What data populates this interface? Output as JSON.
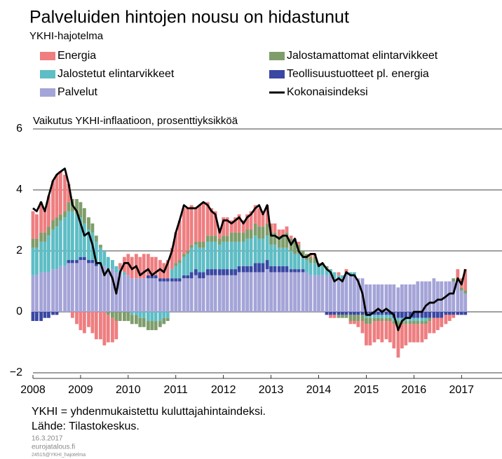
{
  "chart_data": {
    "type": "bar",
    "title": "Palveluiden hintojen nousu on hidastunut",
    "subtitle": "YKHI-hajotelma",
    "y_label": "Vaikutus YKHI-inflaatioon, prosenttiyksikköä",
    "notes": [
      "YKHI = yhdenmukaistettu kuluttajahintaindeksi.",
      "Lähde: Tilastokeskus."
    ],
    "small_notes": [
      "16.3.2017",
      "eurojatalous.fi",
      "24515@YKHI_hajotelma"
    ],
    "stacked": true,
    "grid": true,
    "xlim": [
      2008,
      2017.85
    ],
    "xticks": [
      2008,
      2009,
      2010,
      2011,
      2012,
      2013,
      2014,
      2015,
      2016,
      2017
    ],
    "ylim": [
      -2,
      6
    ],
    "yticks": [
      {
        "value": -2,
        "label": "−2"
      },
      0,
      2,
      4,
      6
    ],
    "x": [
      2008.0,
      2008.08,
      2008.17,
      2008.25,
      2008.33,
      2008.42,
      2008.5,
      2008.58,
      2008.67,
      2008.75,
      2008.83,
      2008.92,
      2009.0,
      2009.08,
      2009.17,
      2009.25,
      2009.33,
      2009.42,
      2009.5,
      2009.58,
      2009.67,
      2009.75,
      2009.83,
      2009.92,
      2010.0,
      2010.08,
      2010.17,
      2010.25,
      2010.33,
      2010.42,
      2010.5,
      2010.58,
      2010.67,
      2010.75,
      2010.83,
      2010.92,
      2011.0,
      2011.08,
      2011.17,
      2011.25,
      2011.33,
      2011.42,
      2011.5,
      2011.58,
      2011.67,
      2011.75,
      2011.83,
      2011.92,
      2012.0,
      2012.08,
      2012.17,
      2012.25,
      2012.33,
      2012.42,
      2012.5,
      2012.58,
      2012.67,
      2012.75,
      2012.83,
      2012.92,
      2013.0,
      2013.08,
      2013.17,
      2013.25,
      2013.33,
      2013.42,
      2013.5,
      2013.58,
      2013.67,
      2013.75,
      2013.83,
      2013.92,
      2014.0,
      2014.08,
      2014.17,
      2014.25,
      2014.33,
      2014.42,
      2014.5,
      2014.58,
      2014.67,
      2014.75,
      2014.83,
      2014.92,
      2015.0,
      2015.08,
      2015.17,
      2015.25,
      2015.33,
      2015.42,
      2015.5,
      2015.58,
      2015.67,
      2015.75,
      2015.83,
      2015.92,
      2016.0,
      2016.08,
      2016.17,
      2016.25,
      2016.33,
      2016.42,
      2016.5,
      2016.58,
      2016.67,
      2016.75,
      2016.83,
      2016.92,
      2017.0,
      2017.08
    ],
    "series": [
      {
        "name": "Energia",
        "type": "bar",
        "color": "#ee7e80",
        "values": [
          0.9,
          0.8,
          1.0,
          0.8,
          1.0,
          1.3,
          1.4,
          1.4,
          1.2,
          0.6,
          -0.2,
          -0.4,
          -0.6,
          -0.7,
          -0.5,
          -0.7,
          -0.9,
          -0.9,
          -1.1,
          -0.9,
          -0.8,
          -0.6,
          0.2,
          0.5,
          0.7,
          0.7,
          0.8,
          0.7,
          0.8,
          0.7,
          0.6,
          0.6,
          0.6,
          0.5,
          0.6,
          0.7,
          1.0,
          1.3,
          1.5,
          1.4,
          1.3,
          1.1,
          1.2,
          1.3,
          1.1,
          0.9,
          0.8,
          0.3,
          0.6,
          0.6,
          0.4,
          0.5,
          0.6,
          0.4,
          0.5,
          0.6,
          0.6,
          0.6,
          0.5,
          0.6,
          0.3,
          0.3,
          0.2,
          0.2,
          0.2,
          0.1,
          0.1,
          0.1,
          0.0,
          0.0,
          0.1,
          0.1,
          0.0,
          0.0,
          0.0,
          -0.1,
          -0.1,
          0.1,
          0.0,
          0.1,
          -0.1,
          -0.1,
          -0.2,
          -0.4,
          -0.7,
          -0.7,
          -0.7,
          -0.6,
          -0.7,
          -0.6,
          -0.7,
          -0.8,
          -1.0,
          -0.8,
          -0.7,
          -0.6,
          -0.6,
          -0.6,
          -0.6,
          -0.5,
          -0.4,
          -0.5,
          -0.4,
          -0.3,
          -0.3,
          -0.2,
          -0.1,
          0.3,
          0.3,
          0.7
        ]
      },
      {
        "name": "Jalostamattomat elintarvikkeet",
        "type": "bar",
        "color": "#7f9d6b",
        "values": [
          0.3,
          0.3,
          0.3,
          0.3,
          0.3,
          0.3,
          0.3,
          0.2,
          0.2,
          0.3,
          0.4,
          0.5,
          0.5,
          0.5,
          0.4,
          0.3,
          0.2,
          0.1,
          0.0,
          -0.1,
          -0.2,
          -0.3,
          -0.3,
          -0.3,
          -0.3,
          -0.3,
          -0.3,
          -0.3,
          -0.3,
          -0.3,
          -0.3,
          -0.3,
          -0.2,
          -0.2,
          -0.1,
          0.0,
          0.1,
          0.1,
          0.1,
          0.1,
          0.1,
          0.1,
          0.2,
          0.2,
          0.2,
          0.2,
          0.2,
          0.2,
          0.2,
          0.2,
          0.3,
          0.3,
          0.3,
          0.3,
          0.3,
          0.3,
          0.4,
          0.4,
          0.4,
          0.4,
          0.4,
          0.4,
          0.4,
          0.4,
          0.5,
          0.4,
          0.4,
          0.3,
          0.2,
          0.2,
          0.2,
          0.2,
          0.1,
          0.1,
          0.1,
          0.0,
          0.0,
          -0.1,
          -0.1,
          -0.1,
          -0.2,
          -0.2,
          -0.2,
          -0.2,
          -0.2,
          -0.2,
          -0.1,
          -0.1,
          -0.1,
          -0.1,
          -0.1,
          -0.1,
          -0.2,
          -0.1,
          -0.1,
          -0.1,
          -0.1,
          -0.1,
          -0.1,
          -0.1,
          -0.1,
          0.0,
          0.0,
          0.0,
          0.0,
          0.0,
          0.1,
          0.1,
          0.1,
          0.1
        ]
      },
      {
        "name": "Jalostetut elintarvikkeet",
        "type": "bar",
        "color": "#5ebdc5",
        "values": [
          0.9,
          0.9,
          1.0,
          1.0,
          1.2,
          1.3,
          1.4,
          1.5,
          1.6,
          1.6,
          1.6,
          1.5,
          1.3,
          1.1,
          1.0,
          0.9,
          0.7,
          0.6,
          0.5,
          0.4,
          0.3,
          0.2,
          0.1,
          0.1,
          0.0,
          -0.1,
          -0.1,
          -0.2,
          -0.2,
          -0.3,
          -0.3,
          -0.3,
          -0.3,
          -0.2,
          -0.2,
          0.3,
          0.4,
          0.5,
          0.6,
          0.7,
          0.8,
          0.8,
          0.8,
          0.8,
          0.9,
          0.9,
          0.9,
          0.8,
          0.9,
          0.9,
          0.9,
          0.9,
          0.8,
          0.8,
          0.9,
          0.9,
          0.9,
          0.8,
          0.8,
          0.8,
          0.7,
          0.7,
          0.6,
          0.6,
          0.6,
          0.6,
          0.5,
          0.5,
          0.4,
          0.4,
          0.4,
          0.4,
          0.3,
          0.3,
          0.2,
          0.2,
          0.2,
          0.1,
          0.1,
          0.1,
          0.1,
          0.1,
          0.0,
          0.0,
          -0.1,
          -0.1,
          -0.1,
          -0.1,
          -0.1,
          -0.1,
          -0.1,
          -0.1,
          -0.1,
          -0.1,
          -0.1,
          -0.1,
          -0.1,
          -0.1,
          -0.1,
          -0.1,
          0.0,
          0.0,
          0.0,
          0.0,
          0.0,
          0.0,
          0.0,
          0.0,
          0.0,
          0.0
        ]
      },
      {
        "name": "Teollisuustuotteet pl. energia",
        "type": "bar",
        "color": "#3a47a3",
        "values": [
          -0.3,
          -0.3,
          -0.3,
          -0.2,
          -0.2,
          -0.1,
          -0.1,
          0.0,
          0.0,
          0.1,
          0.1,
          0.1,
          0.1,
          0.1,
          0.1,
          0.1,
          0.1,
          0.0,
          0.0,
          0.0,
          0.0,
          0.0,
          0.0,
          0.0,
          0.0,
          0.0,
          0.0,
          0.0,
          0.0,
          0.1,
          0.1,
          0.1,
          0.1,
          0.1,
          0.1,
          0.1,
          0.1,
          0.1,
          0.1,
          0.1,
          0.2,
          0.2,
          0.2,
          0.2,
          0.2,
          0.2,
          0.2,
          0.2,
          0.2,
          0.2,
          0.2,
          0.2,
          0.2,
          0.2,
          0.2,
          0.2,
          0.3,
          0.3,
          0.3,
          0.3,
          0.2,
          0.2,
          0.2,
          0.2,
          0.2,
          0.1,
          0.1,
          0.1,
          0.1,
          0.0,
          0.0,
          0.0,
          0.0,
          0.0,
          -0.1,
          -0.1,
          -0.1,
          -0.1,
          -0.1,
          -0.1,
          -0.1,
          -0.1,
          -0.1,
          -0.1,
          -0.1,
          -0.1,
          -0.1,
          -0.1,
          -0.1,
          -0.1,
          -0.1,
          -0.2,
          -0.2,
          -0.2,
          -0.2,
          -0.2,
          -0.2,
          -0.2,
          -0.2,
          -0.2,
          -0.2,
          -0.2,
          -0.2,
          -0.2,
          -0.1,
          -0.1,
          -0.1,
          -0.1,
          -0.1,
          -0.1
        ]
      },
      {
        "name": "Palvelut",
        "type": "bar",
        "color": "#a4a4d8",
        "values": [
          1.2,
          1.2,
          1.3,
          1.3,
          1.3,
          1.4,
          1.4,
          1.5,
          1.5,
          1.6,
          1.6,
          1.6,
          1.7,
          1.7,
          1.6,
          1.6,
          1.5,
          1.5,
          1.5,
          1.4,
          1.4,
          1.3,
          1.3,
          1.2,
          1.2,
          1.1,
          1.1,
          1.1,
          1.1,
          1.1,
          1.1,
          1.1,
          1.0,
          1.0,
          1.0,
          1.0,
          1.0,
          1.0,
          1.1,
          1.1,
          1.1,
          1.2,
          1.1,
          1.1,
          1.2,
          1.2,
          1.2,
          1.2,
          1.2,
          1.2,
          1.2,
          1.2,
          1.3,
          1.3,
          1.3,
          1.3,
          1.3,
          1.3,
          1.3,
          1.4,
          1.3,
          1.3,
          1.3,
          1.3,
          1.3,
          1.3,
          1.3,
          1.3,
          1.3,
          1.3,
          1.2,
          1.2,
          1.2,
          1.2,
          1.2,
          1.2,
          1.1,
          1.1,
          1.1,
          1.2,
          1.2,
          1.2,
          1.1,
          1.1,
          0.9,
          0.9,
          0.9,
          0.9,
          0.9,
          0.9,
          0.9,
          0.9,
          0.8,
          0.9,
          0.9,
          0.9,
          0.9,
          1.0,
          1.0,
          1.0,
          1.0,
          1.1,
          1.0,
          1.0,
          1.0,
          1.0,
          1.0,
          1.0,
          0.7,
          0.6
        ]
      },
      {
        "name": "Kokonaisindeksi",
        "type": "line",
        "color": "#000000",
        "values": [
          3.4,
          3.3,
          3.6,
          3.3,
          3.8,
          4.3,
          4.5,
          4.6,
          4.7,
          4.2,
          3.5,
          3.3,
          2.9,
          2.5,
          2.6,
          2.2,
          1.6,
          1.6,
          1.2,
          1.4,
          1.1,
          0.6,
          1.3,
          1.6,
          1.6,
          1.4,
          1.5,
          1.2,
          1.3,
          1.4,
          1.2,
          1.3,
          1.4,
          1.3,
          1.6,
          2.0,
          2.6,
          3.0,
          3.5,
          3.4,
          3.4,
          3.4,
          3.5,
          3.6,
          3.5,
          3.3,
          3.2,
          2.6,
          3.0,
          3.0,
          2.9,
          3.0,
          3.1,
          2.9,
          3.1,
          3.2,
          3.4,
          3.5,
          3.2,
          3.5,
          2.5,
          2.5,
          2.4,
          2.5,
          2.5,
          2.2,
          2.4,
          2.0,
          1.8,
          1.8,
          1.9,
          1.9,
          1.5,
          1.6,
          1.4,
          1.3,
          1.0,
          1.1,
          1.0,
          1.3,
          1.2,
          1.2,
          1.0,
          0.6,
          -0.1,
          -0.1,
          0.0,
          0.1,
          0.0,
          0.1,
          0.0,
          -0.1,
          -0.6,
          -0.3,
          -0.2,
          -0.2,
          0.0,
          0.0,
          0.0,
          0.2,
          0.3,
          0.3,
          0.4,
          0.4,
          0.5,
          0.6,
          0.6,
          1.1,
          0.9,
          1.4
        ]
      }
    ]
  }
}
